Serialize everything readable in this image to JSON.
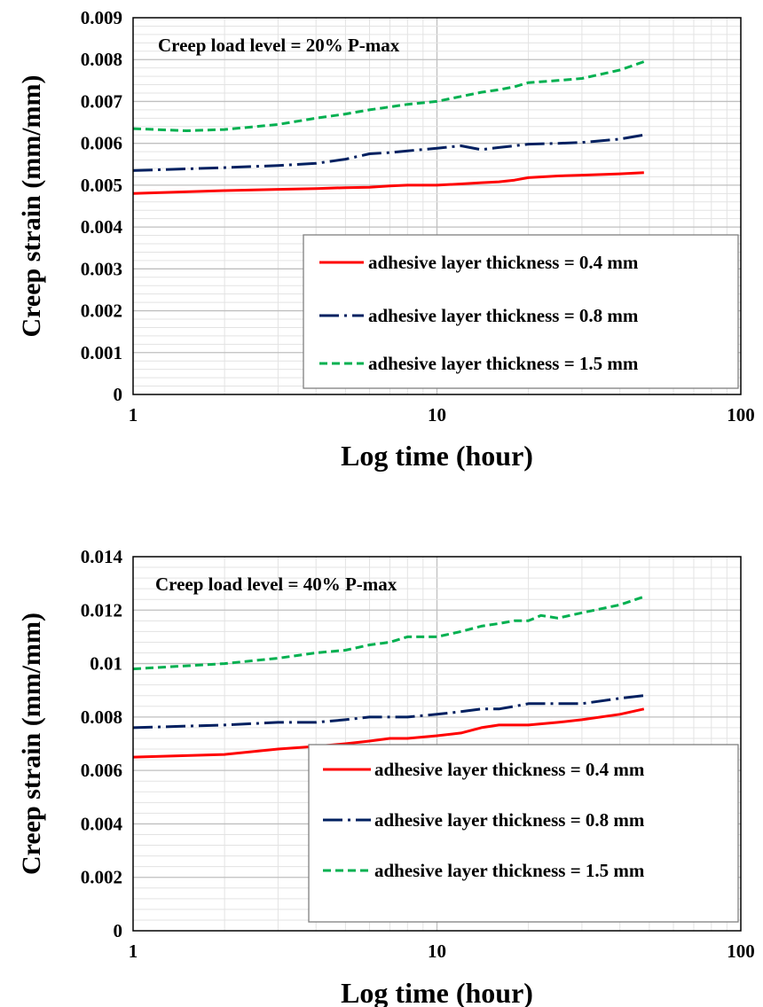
{
  "chart_data": [
    {
      "type": "line",
      "annotation": "Creep load level = 20% P-max",
      "xlabel": "Log time (hour)",
      "ylabel": "Creep strain (mm/mm)",
      "x_scale": "log",
      "xlim": [
        1,
        100
      ],
      "ylim": [
        0,
        0.009
      ],
      "x_ticks": [
        1,
        10,
        100
      ],
      "x_tick_labels": [
        "1",
        "10",
        "100"
      ],
      "y_ticks": [
        0,
        0.001,
        0.002,
        0.003,
        0.004,
        0.005,
        0.006,
        0.007,
        0.008,
        0.009
      ],
      "y_tick_labels": [
        "0",
        "0.001",
        "0.002",
        "0.003",
        "0.004",
        "0.005",
        "0.006",
        "0.007",
        "0.008",
        "0.009"
      ],
      "grid": true,
      "legend_position": "bottom-right",
      "series": [
        {
          "name": "adhesive layer thickness = 0.4 mm",
          "color": "#ff0000",
          "dash": "solid",
          "x": [
            1,
            2,
            3,
            4,
            5,
            6,
            7,
            8,
            10,
            12,
            14,
            16,
            18,
            20,
            25,
            30,
            40,
            48
          ],
          "y": [
            0.0048,
            0.00487,
            0.0049,
            0.00492,
            0.00494,
            0.00495,
            0.00498,
            0.005,
            0.005,
            0.00503,
            0.00506,
            0.00508,
            0.00512,
            0.00518,
            0.00522,
            0.00524,
            0.00527,
            0.0053
          ]
        },
        {
          "name": "adhesive layer thickness = 0.8 mm",
          "color": "#002060",
          "dash": "dashdot",
          "x": [
            1,
            2,
            3,
            4,
            5,
            6,
            7,
            8,
            10,
            12,
            14,
            16,
            18,
            20,
            25,
            30,
            40,
            48
          ],
          "y": [
            0.00535,
            0.00542,
            0.00547,
            0.00552,
            0.00562,
            0.00575,
            0.00578,
            0.00582,
            0.00588,
            0.00594,
            0.00585,
            0.0059,
            0.00594,
            0.00598,
            0.006,
            0.00602,
            0.0061,
            0.0062
          ]
        },
        {
          "name": "adhesive layer thickness = 1.5 mm",
          "color": "#00b050",
          "dash": "dash",
          "x": [
            1,
            1.5,
            2,
            3,
            4,
            5,
            6,
            7,
            8,
            10,
            12,
            14,
            16,
            18,
            20,
            25,
            30,
            40,
            48
          ],
          "y": [
            0.00635,
            0.0063,
            0.00633,
            0.00645,
            0.0066,
            0.0067,
            0.0068,
            0.00687,
            0.00693,
            0.007,
            0.00712,
            0.00722,
            0.00728,
            0.00735,
            0.00745,
            0.0075,
            0.00755,
            0.00775,
            0.00795
          ]
        }
      ]
    },
    {
      "type": "line",
      "annotation": "Creep load level = 40% P-max",
      "xlabel": "Log time (hour)",
      "ylabel": "Creep strain (mm/mm)",
      "x_scale": "log",
      "xlim": [
        1,
        100
      ],
      "ylim": [
        0,
        0.014
      ],
      "x_ticks": [
        1,
        10,
        100
      ],
      "x_tick_labels": [
        "1",
        "10",
        "100"
      ],
      "y_ticks": [
        0,
        0.002,
        0.004,
        0.006,
        0.008,
        0.01,
        0.012,
        0.014
      ],
      "y_tick_labels": [
        "0",
        "0.002",
        "0.004",
        "0.006",
        "0.008",
        "0.01",
        "0.012",
        "0.014"
      ],
      "grid": true,
      "legend_position": "bottom-right",
      "series": [
        {
          "name": "adhesive layer thickness = 0.4 mm",
          "color": "#ff0000",
          "dash": "solid",
          "x": [
            1,
            2,
            3,
            4,
            5,
            6,
            7,
            8,
            10,
            12,
            14,
            16,
            18,
            20,
            25,
            30,
            40,
            48
          ],
          "y": [
            0.0065,
            0.0066,
            0.0068,
            0.0069,
            0.007,
            0.0071,
            0.0072,
            0.0072,
            0.0073,
            0.0074,
            0.0076,
            0.0077,
            0.0077,
            0.0077,
            0.0078,
            0.0079,
            0.0081,
            0.0083
          ]
        },
        {
          "name": "adhesive layer thickness = 0.8 mm",
          "color": "#002060",
          "dash": "dashdot",
          "x": [
            1,
            2,
            3,
            4,
            5,
            6,
            7,
            8,
            10,
            12,
            14,
            16,
            18,
            20,
            25,
            30,
            40,
            48
          ],
          "y": [
            0.0076,
            0.0077,
            0.0078,
            0.0078,
            0.0079,
            0.008,
            0.008,
            0.008,
            0.0081,
            0.0082,
            0.0083,
            0.0083,
            0.0084,
            0.0085,
            0.0085,
            0.0085,
            0.0087,
            0.0088
          ]
        },
        {
          "name": "adhesive layer thickness = 1.5 mm",
          "color": "#00b050",
          "dash": "dash",
          "x": [
            1,
            2,
            3,
            4,
            5,
            6,
            7,
            8,
            10,
            12,
            14,
            16,
            18,
            20,
            22,
            25,
            30,
            40,
            48
          ],
          "y": [
            0.0098,
            0.01,
            0.0102,
            0.0104,
            0.0105,
            0.0107,
            0.0108,
            0.011,
            0.011,
            0.0112,
            0.0114,
            0.0115,
            0.0116,
            0.0116,
            0.0118,
            0.0117,
            0.0119,
            0.0122,
            0.0125
          ]
        }
      ]
    }
  ]
}
